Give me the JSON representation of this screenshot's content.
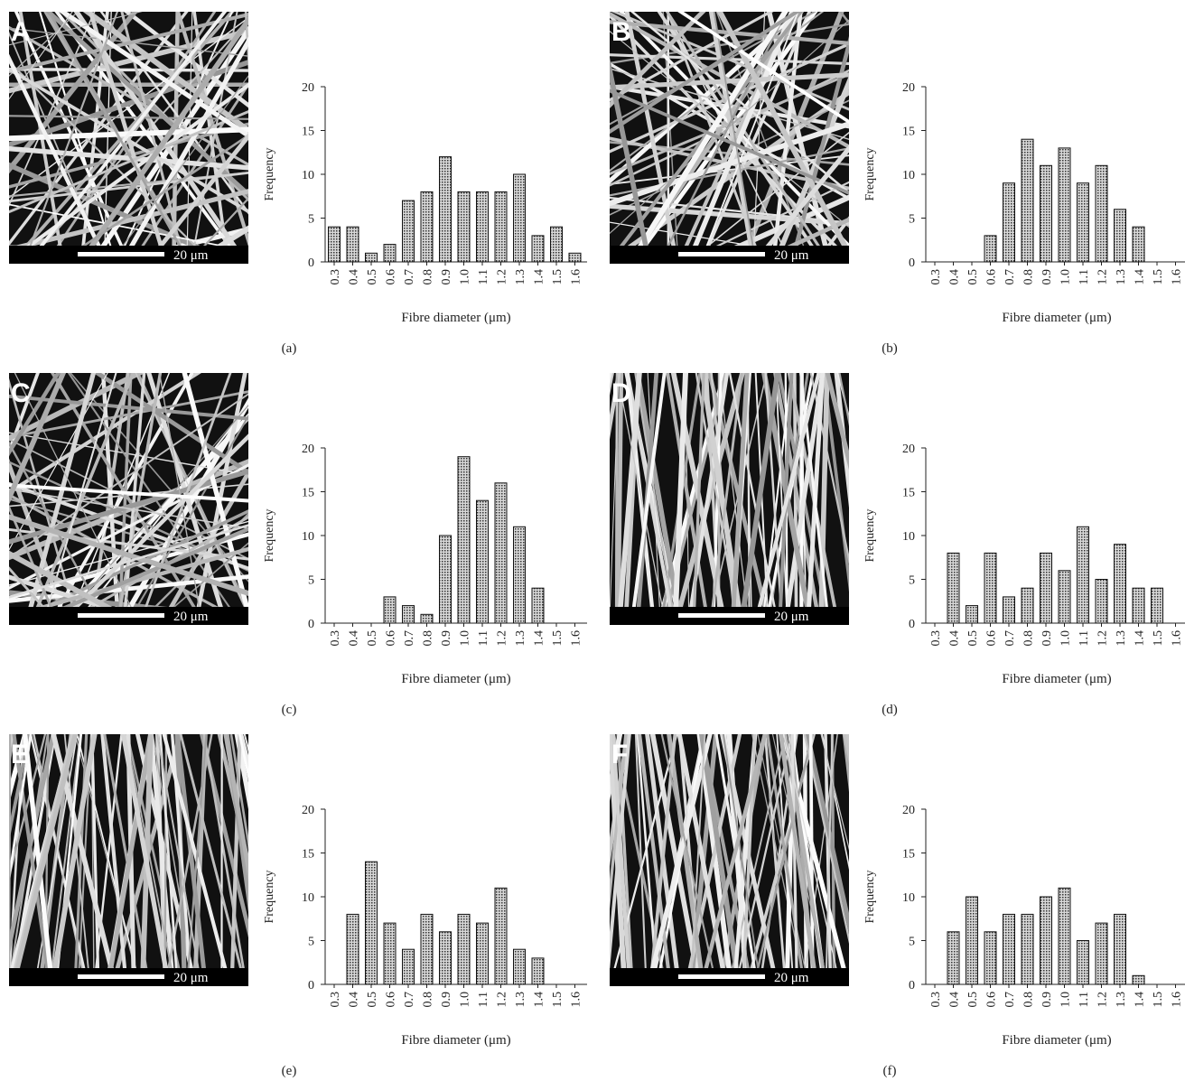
{
  "chart_data": [
    {
      "type": "bar",
      "panel_label": "A",
      "scale_label": "20 μm",
      "caption": "(a)",
      "xlabel": "Fibre diameter (μm)",
      "ylabel": "Frequency",
      "color": "#a0a0a0",
      "categories": [
        "0.3",
        "0.4",
        "0.5",
        "0.6",
        "0.7",
        "0.8",
        "0.9",
        "1.0",
        "1.1",
        "1.2",
        "1.3",
        "1.4",
        "1.5",
        "1.6"
      ],
      "values": [
        4,
        4,
        1,
        2,
        7,
        8,
        12,
        8,
        8,
        8,
        10,
        3,
        4,
        1
      ],
      "ylim": [
        0,
        20
      ],
      "yticks": [
        0,
        5,
        10,
        15,
        20
      ]
    },
    {
      "type": "bar",
      "panel_label": "B",
      "scale_label": "20 μm",
      "caption": "(b)",
      "xlabel": "Fibre diameter (μm)",
      "ylabel": "Frequency",
      "color": "#a0a0a0",
      "categories": [
        "0.3",
        "0.4",
        "0.5",
        "0.6",
        "0.7",
        "0.8",
        "0.9",
        "1.0",
        "1.1",
        "1.2",
        "1.3",
        "1.4",
        "1.5",
        "1.6"
      ],
      "values": [
        0,
        0,
        0,
        3,
        9,
        14,
        11,
        13,
        9,
        11,
        6,
        4,
        0,
        0
      ],
      "ylim": [
        0,
        20
      ],
      "yticks": [
        0,
        5,
        10,
        15,
        20
      ]
    },
    {
      "type": "bar",
      "panel_label": "C",
      "scale_label": "20 μm",
      "caption": "(c)",
      "xlabel": "Fibre diameter (μm)",
      "ylabel": "Frequency",
      "color": "#a0a0a0",
      "categories": [
        "0.3",
        "0.4",
        "0.5",
        "0.6",
        "0.7",
        "0.8",
        "0.9",
        "1.0",
        "1.1",
        "1.2",
        "1.3",
        "1.4",
        "1.5",
        "1.6"
      ],
      "values": [
        0,
        0,
        0,
        3,
        2,
        1,
        10,
        19,
        14,
        16,
        11,
        4,
        0,
        0
      ],
      "ylim": [
        0,
        20
      ],
      "yticks": [
        0,
        5,
        10,
        15,
        20
      ]
    },
    {
      "type": "bar",
      "panel_label": "D",
      "scale_label": "20 μm",
      "caption": "(d)",
      "xlabel": "Fibre diameter (μm)",
      "ylabel": "Frequency",
      "color": "#a0a0a0",
      "categories": [
        "0.3",
        "0.4",
        "0.5",
        "0.6",
        "0.7",
        "0.8",
        "0.9",
        "1.0",
        "1.1",
        "1.2",
        "1.3",
        "1.4",
        "1.5",
        "1.6"
      ],
      "values": [
        0,
        8,
        2,
        8,
        3,
        4,
        8,
        6,
        11,
        5,
        9,
        4,
        4,
        0
      ],
      "ylim": [
        0,
        20
      ],
      "yticks": [
        0,
        5,
        10,
        15,
        20
      ]
    },
    {
      "type": "bar",
      "panel_label": "E",
      "scale_label": "20 μm",
      "caption": "(e)",
      "xlabel": "Fibre diameter (μm)",
      "ylabel": "Frequency",
      "color": "#a0a0a0",
      "categories": [
        "0.3",
        "0.4",
        "0.5",
        "0.6",
        "0.7",
        "0.8",
        "0.9",
        "1.0",
        "1.1",
        "1.2",
        "1.3",
        "1.4",
        "1.5",
        "1.6"
      ],
      "values": [
        0,
        8,
        14,
        7,
        4,
        8,
        6,
        8,
        7,
        11,
        4,
        3,
        0,
        0
      ],
      "ylim": [
        0,
        20
      ],
      "yticks": [
        0,
        5,
        10,
        15,
        20
      ]
    },
    {
      "type": "bar",
      "panel_label": "F",
      "scale_label": "20 μm",
      "caption": "(f)",
      "xlabel": "Fibre diameter (μm)",
      "ylabel": "Frequency",
      "color": "#a0a0a0",
      "categories": [
        "0.3",
        "0.4",
        "0.5",
        "0.6",
        "0.7",
        "0.8",
        "0.9",
        "1.0",
        "1.1",
        "1.2",
        "1.3",
        "1.4",
        "1.5",
        "1.6"
      ],
      "values": [
        0,
        6,
        10,
        6,
        8,
        8,
        10,
        11,
        5,
        7,
        8,
        1,
        0,
        0
      ],
      "ylim": [
        0,
        20
      ],
      "yticks": [
        0,
        5,
        10,
        15,
        20
      ]
    }
  ]
}
